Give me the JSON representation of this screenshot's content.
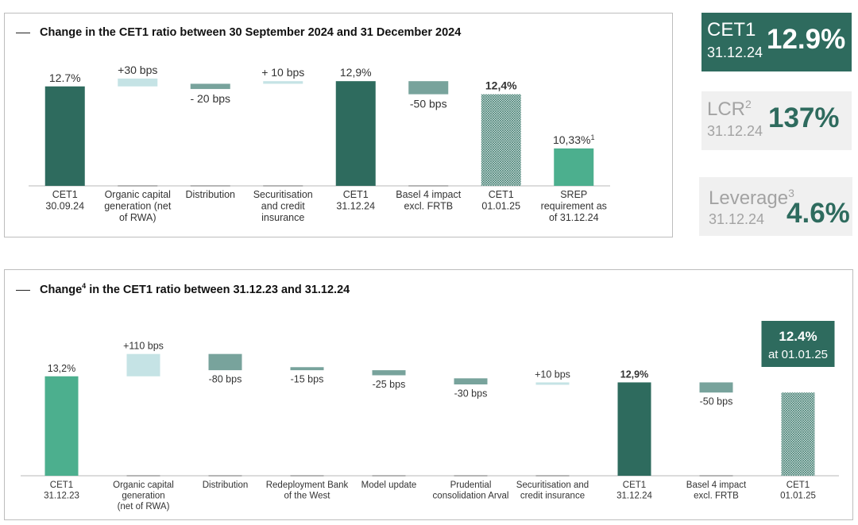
{
  "kpis": {
    "cet1": {
      "name": "CET1",
      "date": "31.12.24",
      "value": "12.9%"
    },
    "lcr": {
      "name": "LCR",
      "sup": "2",
      "date": "31.12.24",
      "value": "137%"
    },
    "leverage": {
      "name": "Leverage",
      "sup": "3",
      "date": "31.12.24",
      "value": "4.6%"
    }
  },
  "colors": {
    "dark_green": "#2e6b5e",
    "mid_green": "#4caf8e",
    "grey_green": "#78a39c",
    "light_blue": "#c5e3e5",
    "hatched": "#cfe3de"
  },
  "chart_data": [
    {
      "type": "bar",
      "subtype": "waterfall",
      "title": "Change in the CET1 ratio between 30 September 2024 and 31 December 2024",
      "unit": "%",
      "categories": [
        "CET1\n30.09.24",
        "Organic capital\ngeneration (net\nof RWA)",
        "Distribution",
        "Securitisation\nand credit\ninsurance",
        "CET1\n31.12.24",
        "Basel 4 impact\nexcl. FRTB",
        "CET1\n01.01.25",
        "SREP\nrequirement as\nof  31.12.24"
      ],
      "bars": [
        {
          "kind": "total",
          "value": 12.7,
          "label": "12.7%",
          "color": "dark"
        },
        {
          "kind": "delta",
          "from": 12.7,
          "to": 13.0,
          "label": "+30 bps",
          "color": "light"
        },
        {
          "kind": "delta",
          "from": 12.8,
          "to": 12.6,
          "label": "- 20 bps",
          "color": "grey"
        },
        {
          "kind": "delta",
          "from": 12.8,
          "to": 12.9,
          "label": "+ 10 bps",
          "color": "light"
        },
        {
          "kind": "total",
          "value": 12.9,
          "label": "12,9%",
          "color": "dark"
        },
        {
          "kind": "delta",
          "from": 12.9,
          "to": 12.4,
          "label": "-50 bps",
          "color": "grey"
        },
        {
          "kind": "total",
          "value": 12.4,
          "label": "12,4%",
          "bold": true,
          "color": "hatched"
        },
        {
          "kind": "total",
          "value": 10.33,
          "label": "10,33%",
          "label_sup": "1",
          "color": "mid"
        }
      ],
      "ylim": [
        8.9,
        13.3
      ]
    },
    {
      "type": "bar",
      "subtype": "waterfall",
      "title": "Change",
      "title_sup": "4",
      "title_rest": " in the CET1 ratio between 31.12.23 and 31.12.24",
      "unit": "%",
      "categories": [
        "CET1\n31.12.23",
        "Organic capital\ngeneration\n(net of RWA)",
        "Distribution",
        "Redeployment Bank\nof the West",
        "Model update",
        "Prudential\nconsolidation Arval",
        "Securitisation and\ncredit insurance",
        "CET1\n31.12.24",
        "Basel 4 impact\nexcl. FRTB",
        "CET1\n01.01.25"
      ],
      "bars": [
        {
          "kind": "total",
          "value": 13.2,
          "label": "13,2%",
          "color": "mid"
        },
        {
          "kind": "delta",
          "from": 13.2,
          "to": 14.3,
          "label": "+110 bps",
          "color": "light"
        },
        {
          "kind": "delta",
          "from": 14.3,
          "to": 13.5,
          "label": "-80 bps",
          "color": "grey"
        },
        {
          "kind": "delta",
          "from": 13.65,
          "to": 13.5,
          "label": "-15 bps",
          "color": "grey"
        },
        {
          "kind": "delta",
          "from": 13.5,
          "to": 13.25,
          "label": "-25 bps",
          "color": "grey"
        },
        {
          "kind": "delta",
          "from": 13.1,
          "to": 12.8,
          "label": "-30 bps",
          "color": "grey"
        },
        {
          "kind": "delta",
          "from": 12.8,
          "to": 12.9,
          "label": "+10 bps",
          "color": "light"
        },
        {
          "kind": "total",
          "value": 12.9,
          "label": "12,9%",
          "bold": true,
          "color": "dark"
        },
        {
          "kind": "delta",
          "from": 12.9,
          "to": 12.4,
          "label": "-50 bps",
          "color": "grey"
        },
        {
          "kind": "total",
          "value": 12.4,
          "label": "",
          "color": "hatched"
        }
      ],
      "ylim": [
        8.3,
        14.6
      ],
      "callout": {
        "line1": "12.4%",
        "line2": "at 01.01.25"
      }
    }
  ]
}
